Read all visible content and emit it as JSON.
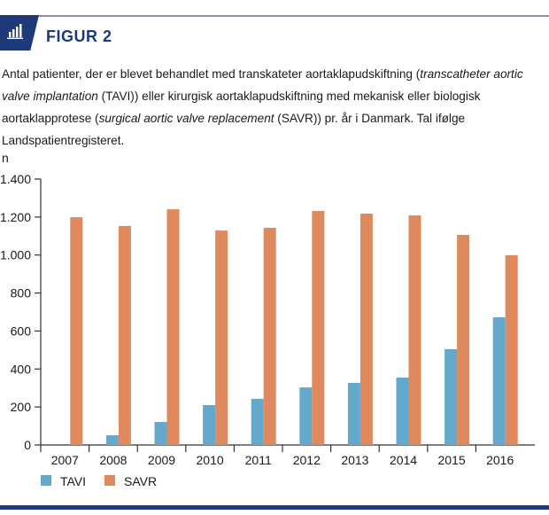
{
  "header": {
    "icon": "bar-chart-icon",
    "title": "FIGUR 2"
  },
  "caption": {
    "part1": "Antal patienter, der er blevet behandlet med transkateter aortaklapudskiftning (",
    "italic1": "transcatheter aortic valve implantation",
    "part2": " (TAVI)) eller kirurgisk aortaklapudskiftning med mekanisk eller biologisk aortaklapprotese (",
    "italic2": "surgical aortic valve replacement",
    "part3": " (SAVR)) pr. år i Danmark. Tal ifølge Landspatientregisteret."
  },
  "colors": {
    "accent": "#1e3a78",
    "tavi": "#64a8cc",
    "savr": "#de8a5e"
  },
  "chart_data": {
    "type": "bar",
    "title": "",
    "xlabel": "",
    "ylabel": "n",
    "ylim": [
      0,
      1400
    ],
    "yticks": [
      0,
      200,
      400,
      600,
      800,
      1000,
      1200,
      1400
    ],
    "ytick_labels": [
      "0",
      "200",
      "400",
      "600",
      "800",
      "1.000",
      "1.200",
      "1.400"
    ],
    "categories": [
      "2007",
      "2008",
      "2009",
      "2010",
      "2011",
      "2012",
      "2013",
      "2014",
      "2015",
      "2016"
    ],
    "series": [
      {
        "name": "TAVI",
        "color": "#64a8cc",
        "values": [
          0,
          51,
          121,
          210,
          243,
          303,
          327,
          355,
          504,
          672
        ]
      },
      {
        "name": "SAVR",
        "color": "#de8a5e",
        "values": [
          1199,
          1153,
          1241,
          1129,
          1143,
          1232,
          1218,
          1209,
          1106,
          999
        ]
      }
    ],
    "grid": false,
    "legend": "bottom-left"
  }
}
